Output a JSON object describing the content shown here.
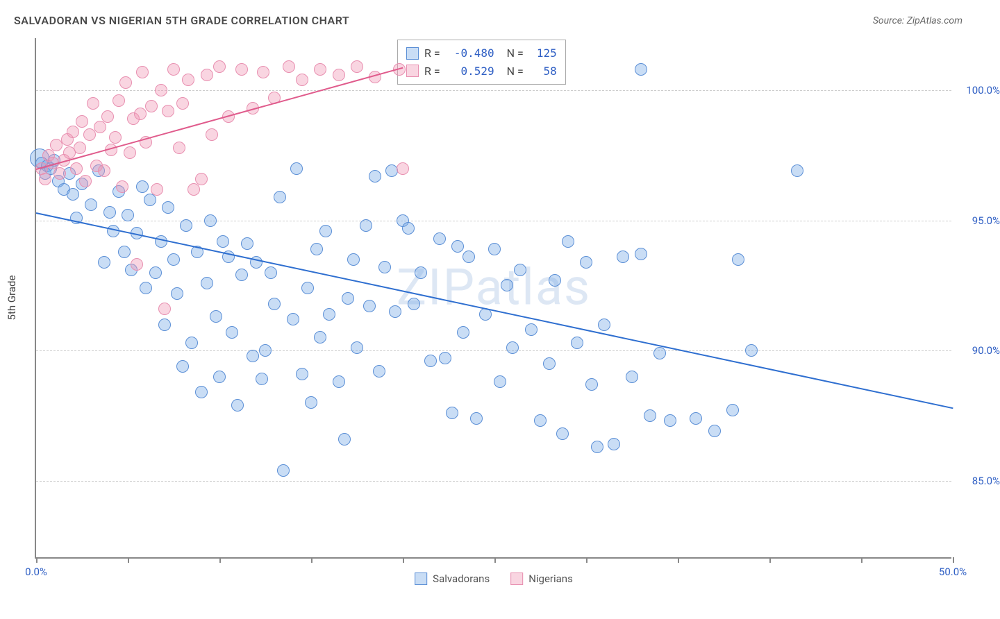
{
  "header": {
    "title": "SALVADORAN VS NIGERIAN 5TH GRADE CORRELATION CHART",
    "source_prefix": "Source: ",
    "source_name": "ZipAtlas.com"
  },
  "watermark": "ZIPatlas",
  "chart": {
    "type": "scatter",
    "ylabel": "5th Grade",
    "xlim": [
      0,
      50
    ],
    "ylim": [
      82,
      102
    ],
    "x_ticks": [
      0,
      5,
      10,
      15,
      20,
      25,
      30,
      35,
      40,
      45,
      50
    ],
    "x_tick_labels": {
      "0": "0.0%",
      "50": "50.0%"
    },
    "y_ticks": [
      85,
      90,
      95,
      100
    ],
    "y_tick_labels": [
      "85.0%",
      "90.0%",
      "95.0%",
      "100.0%"
    ],
    "background_color": "#ffffff",
    "grid_color": "#cccccc",
    "axis_color": "#888888",
    "tick_label_color": "#2f5fc4",
    "marker_radius": 9,
    "marker_radius_large": 14,
    "series": [
      {
        "name": "Salvadorans",
        "fill": "rgba(120,170,230,0.40)",
        "stroke": "#5b8fd6",
        "R": "-0.480",
        "N": "125",
        "trend": {
          "x1": 0,
          "y1": 95.3,
          "x2": 50,
          "y2": 87.8,
          "color": "#2f6fd0",
          "width": 2
        },
        "points": [
          [
            0.2,
            97.4,
            14
          ],
          [
            0.3,
            97.2
          ],
          [
            0.6,
            97.1
          ],
          [
            0.5,
            96.8
          ],
          [
            0.8,
            97.0
          ],
          [
            1.2,
            96.5
          ],
          [
            1.0,
            97.3
          ],
          [
            1.5,
            96.2
          ],
          [
            1.8,
            96.8
          ],
          [
            2.0,
            96.0
          ],
          [
            2.2,
            95.1
          ],
          [
            2.5,
            96.4
          ],
          [
            3.0,
            95.6
          ],
          [
            3.4,
            96.9
          ],
          [
            3.7,
            93.4
          ],
          [
            4.0,
            95.3
          ],
          [
            4.2,
            94.6
          ],
          [
            4.5,
            96.1
          ],
          [
            4.8,
            93.8
          ],
          [
            5.0,
            95.2
          ],
          [
            5.2,
            93.1
          ],
          [
            5.5,
            94.5
          ],
          [
            5.8,
            96.3
          ],
          [
            6.0,
            92.4
          ],
          [
            6.2,
            95.8
          ],
          [
            6.5,
            93.0
          ],
          [
            6.8,
            94.2
          ],
          [
            7.0,
            91.0
          ],
          [
            7.2,
            95.5
          ],
          [
            7.5,
            93.5
          ],
          [
            7.7,
            92.2
          ],
          [
            8.0,
            89.4
          ],
          [
            8.2,
            94.8
          ],
          [
            8.5,
            90.3
          ],
          [
            8.8,
            93.8
          ],
          [
            9.0,
            88.4
          ],
          [
            9.3,
            92.6
          ],
          [
            9.5,
            95.0
          ],
          [
            9.8,
            91.3
          ],
          [
            10.0,
            89.0
          ],
          [
            10.2,
            94.2
          ],
          [
            10.5,
            93.6
          ],
          [
            10.7,
            90.7
          ],
          [
            11.0,
            87.9
          ],
          [
            11.2,
            92.9
          ],
          [
            11.5,
            94.1
          ],
          [
            11.8,
            89.8
          ],
          [
            12.0,
            93.4
          ],
          [
            12.3,
            88.9
          ],
          [
            12.5,
            90.0
          ],
          [
            12.8,
            93.0
          ],
          [
            13.0,
            91.8
          ],
          [
            13.3,
            95.9
          ],
          [
            13.5,
            85.4
          ],
          [
            14.0,
            91.2
          ],
          [
            14.2,
            97.0
          ],
          [
            14.5,
            89.1
          ],
          [
            14.8,
            92.4
          ],
          [
            15.0,
            88.0
          ],
          [
            15.3,
            93.9
          ],
          [
            15.5,
            90.5
          ],
          [
            15.8,
            94.6
          ],
          [
            16.0,
            91.4
          ],
          [
            16.5,
            88.8
          ],
          [
            16.8,
            86.6
          ],
          [
            17.0,
            92.0
          ],
          [
            17.3,
            93.5
          ],
          [
            17.5,
            90.1
          ],
          [
            18.0,
            94.8
          ],
          [
            18.2,
            91.7
          ],
          [
            18.5,
            96.7
          ],
          [
            18.7,
            89.2
          ],
          [
            19.0,
            93.2
          ],
          [
            19.4,
            96.9
          ],
          [
            19.6,
            91.5
          ],
          [
            20.0,
            95.0
          ],
          [
            20.3,
            94.7
          ],
          [
            20.6,
            91.8
          ],
          [
            21.0,
            93.0
          ],
          [
            21.5,
            89.6
          ],
          [
            22.0,
            94.3
          ],
          [
            22.3,
            89.7
          ],
          [
            22.7,
            87.6
          ],
          [
            23.0,
            94.0
          ],
          [
            23.3,
            90.7
          ],
          [
            23.6,
            93.6
          ],
          [
            24.0,
            87.4
          ],
          [
            24.5,
            91.4
          ],
          [
            25.0,
            93.9
          ],
          [
            25.3,
            88.8
          ],
          [
            25.7,
            92.5
          ],
          [
            26.0,
            90.1
          ],
          [
            26.4,
            93.1
          ],
          [
            27.0,
            90.8
          ],
          [
            27.5,
            87.3
          ],
          [
            28.0,
            89.5
          ],
          [
            28.3,
            92.7
          ],
          [
            28.7,
            86.8
          ],
          [
            29.0,
            94.2
          ],
          [
            29.5,
            90.3
          ],
          [
            30.0,
            93.4
          ],
          [
            30.3,
            88.7
          ],
          [
            30.6,
            86.3
          ],
          [
            31.0,
            91.0
          ],
          [
            31.5,
            86.4
          ],
          [
            32.0,
            93.6
          ],
          [
            32.5,
            89.0
          ],
          [
            33.0,
            93.7
          ],
          [
            33.5,
            87.5
          ],
          [
            34.0,
            89.9
          ],
          [
            34.6,
            87.3
          ],
          [
            36.0,
            87.4
          ],
          [
            37.0,
            86.9
          ],
          [
            38.0,
            87.7
          ],
          [
            38.3,
            93.5
          ],
          [
            39.0,
            90.0
          ],
          [
            41.5,
            96.9
          ],
          [
            33.0,
            100.8
          ]
        ]
      },
      {
        "name": "Nigerians",
        "fill": "rgba(240,150,180,0.40)",
        "stroke": "#e88fb0",
        "R": "0.529",
        "N": "58",
        "trend": {
          "x1": 0,
          "y1": 97.0,
          "x2": 20,
          "y2": 100.9,
          "color": "#e05b8c",
          "width": 2
        },
        "points": [
          [
            0.3,
            97.0
          ],
          [
            0.5,
            96.6
          ],
          [
            0.7,
            97.5
          ],
          [
            0.9,
            97.2
          ],
          [
            1.1,
            97.9
          ],
          [
            1.3,
            96.8
          ],
          [
            1.5,
            97.3
          ],
          [
            1.7,
            98.1
          ],
          [
            1.8,
            97.6
          ],
          [
            2.0,
            98.4
          ],
          [
            2.2,
            97.0
          ],
          [
            2.4,
            97.8
          ],
          [
            2.5,
            98.8
          ],
          [
            2.7,
            96.5
          ],
          [
            2.9,
            98.3
          ],
          [
            3.1,
            99.5
          ],
          [
            3.3,
            97.1
          ],
          [
            3.5,
            98.6
          ],
          [
            3.7,
            96.9
          ],
          [
            3.9,
            99.0
          ],
          [
            4.1,
            97.7
          ],
          [
            4.3,
            98.2
          ],
          [
            4.5,
            99.6
          ],
          [
            4.7,
            96.3
          ],
          [
            4.9,
            100.3
          ],
          [
            5.1,
            97.6
          ],
          [
            5.3,
            98.9
          ],
          [
            5.5,
            93.3
          ],
          [
            5.7,
            99.1
          ],
          [
            5.8,
            100.7
          ],
          [
            6.0,
            98.0
          ],
          [
            6.3,
            99.4
          ],
          [
            6.6,
            96.2
          ],
          [
            6.8,
            100.0
          ],
          [
            7.0,
            91.6
          ],
          [
            7.2,
            99.2
          ],
          [
            7.5,
            100.8
          ],
          [
            7.8,
            97.8
          ],
          [
            8.0,
            99.5
          ],
          [
            8.3,
            100.4
          ],
          [
            8.6,
            96.2
          ],
          [
            9.0,
            96.6
          ],
          [
            9.3,
            100.6
          ],
          [
            9.6,
            98.3
          ],
          [
            10.0,
            100.9
          ],
          [
            10.5,
            99.0
          ],
          [
            11.2,
            100.8
          ],
          [
            11.8,
            99.3
          ],
          [
            12.4,
            100.7
          ],
          [
            13.0,
            99.7
          ],
          [
            13.8,
            100.9
          ],
          [
            14.5,
            100.4
          ],
          [
            15.5,
            100.8
          ],
          [
            16.5,
            100.6
          ],
          [
            17.5,
            100.9
          ],
          [
            18.5,
            100.5
          ],
          [
            19.8,
            100.8
          ],
          [
            20.0,
            97.0
          ]
        ]
      }
    ]
  },
  "legend_bottom": {
    "items": [
      {
        "label": "Salvadorans",
        "fill": "rgba(120,170,230,0.40)",
        "stroke": "#5b8fd6"
      },
      {
        "label": "Nigerians",
        "fill": "rgba(240,150,180,0.40)",
        "stroke": "#e88fb0"
      }
    ]
  }
}
